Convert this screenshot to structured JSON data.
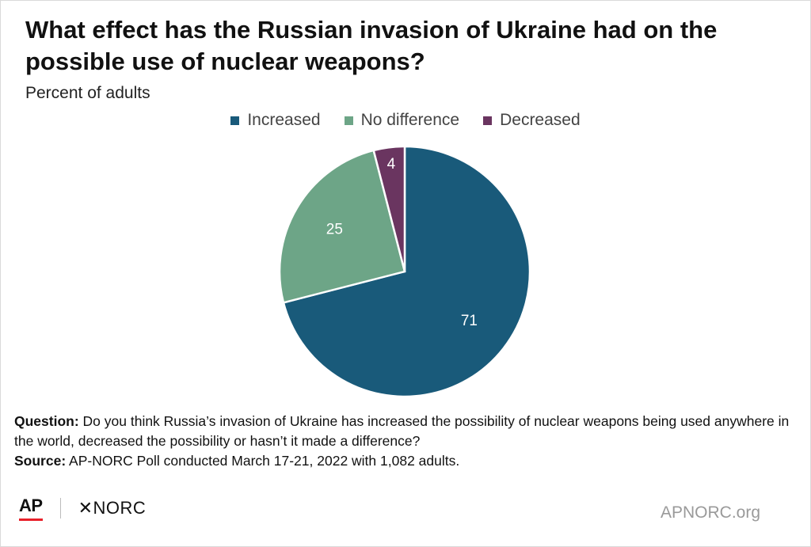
{
  "title": "What effect has the Russian invasion of Ukraine had on the possible use of nuclear weapons?",
  "subtitle": "Percent of adults",
  "chart_data": {
    "type": "pie",
    "categories": [
      "Increased",
      "No difference",
      "Decreased"
    ],
    "values": [
      71,
      25,
      4
    ],
    "colors": [
      "#195a7a",
      "#6da587",
      "#6a3560"
    ],
    "data_labels": [
      "71",
      "25",
      "4"
    ],
    "legend": "top-center",
    "start": "12 o'clock, clockwise"
  },
  "notes": {
    "question_label": "Question:",
    "question_text": " Do you think Russia’s invasion of Ukraine has increased the possibility of nuclear weapons being used anywhere in the world, decreased the possibility or hasn’t it made a difference?",
    "source_label": "Source:",
    "source_text": " AP-NORC Poll conducted March 17-21, 2022 with 1,082 adults."
  },
  "footer": {
    "ap_logo": "AP",
    "norc_logo": "✕NORC",
    "site": "APNORC.org"
  }
}
